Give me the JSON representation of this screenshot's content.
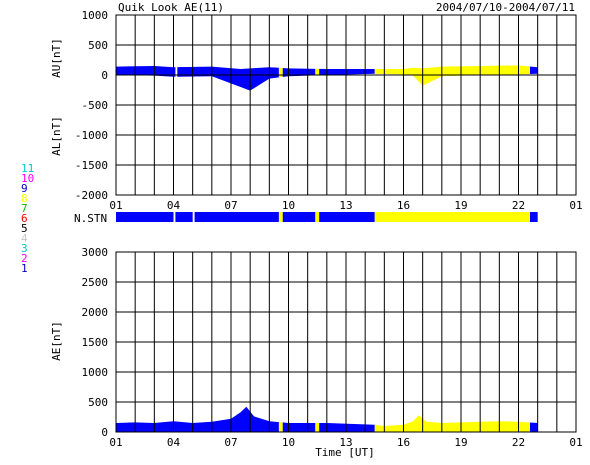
{
  "header": {
    "title": "Quik Look AE(11)",
    "date_range": "2004/07/10-2004/07/11"
  },
  "colors": {
    "blue": "#0000ff",
    "yellow": "#ffff00",
    "grid": "#000000"
  },
  "station_legend": [
    {
      "label": "11",
      "color": "#00c8c8"
    },
    {
      "label": "10",
      "color": "#ff00ff"
    },
    {
      "label": "9",
      "color": "#0000cc"
    },
    {
      "label": "8",
      "color": "#ffff00"
    },
    {
      "label": "7",
      "color": "#00c800"
    },
    {
      "label": "6",
      "color": "#ff0000"
    },
    {
      "label": "5",
      "color": "#000000"
    },
    {
      "label": "4",
      "color": "#c8c8c8"
    },
    {
      "label": "3",
      "color": "#00c8c8"
    },
    {
      "label": "2",
      "color": "#ff00ff"
    },
    {
      "label": "1",
      "color": "#0000cc"
    }
  ],
  "nstn_label": "N.STN",
  "chart_data": [
    {
      "type": "area",
      "ylabel_top": "AU[nT]",
      "ylabel_bottom": "AL[nT]",
      "ylim": [
        -2000,
        1000
      ],
      "yticks": [
        "1000",
        "500",
        "0",
        "-500",
        "-1000",
        "-1500",
        "-2000"
      ],
      "xlim": [
        1,
        25
      ],
      "xticks": [
        "01",
        "04",
        "07",
        "10",
        "13",
        "16",
        "19",
        "22",
        "01"
      ],
      "grid": true,
      "au_band": {
        "x": [
          1,
          3,
          4,
          6,
          7.5,
          8,
          9,
          10,
          12,
          14.5,
          16,
          16.5,
          17,
          18,
          20,
          22,
          23
        ],
        "top": [
          140,
          150,
          130,
          140,
          100,
          110,
          130,
          110,
          100,
          100,
          100,
          120,
          110,
          140,
          150,
          160,
          130
        ],
        "bottom": [
          0,
          -10,
          -30,
          -20,
          -200,
          -260,
          -60,
          -20,
          0,
          20,
          10,
          -10,
          -180,
          -20,
          0,
          10,
          20
        ]
      },
      "segments": [
        {
          "start": 1.0,
          "end": 4.1,
          "color": "blue"
        },
        {
          "start": 4.2,
          "end": 9.5,
          "color": "blue"
        },
        {
          "start": 9.5,
          "end": 9.7,
          "color": "yellow"
        },
        {
          "start": 9.7,
          "end": 11.4,
          "color": "blue"
        },
        {
          "start": 11.4,
          "end": 11.6,
          "color": "yellow"
        },
        {
          "start": 11.6,
          "end": 14.5,
          "color": "blue"
        },
        {
          "start": 14.5,
          "end": 22.6,
          "color": "yellow"
        },
        {
          "start": 22.6,
          "end": 23.0,
          "color": "blue"
        }
      ]
    },
    {
      "type": "area",
      "ylabel": "AE[nT]",
      "xlabel": "Time [UT]",
      "ylim": [
        0,
        3000
      ],
      "yticks": [
        "3000",
        "2500",
        "2000",
        "1500",
        "1000",
        "500",
        "0"
      ],
      "xlim": [
        1,
        25
      ],
      "xticks": [
        "01",
        "04",
        "07",
        "10",
        "13",
        "16",
        "19",
        "22",
        "01"
      ],
      "grid": true,
      "x": [
        1,
        2,
        3,
        4,
        5,
        6,
        7,
        7.5,
        7.8,
        8.2,
        9,
        10,
        12,
        14.5,
        15,
        16,
        16.5,
        16.8,
        17.2,
        18,
        19,
        20,
        21,
        22,
        23
      ],
      "y": [
        150,
        160,
        150,
        180,
        150,
        170,
        220,
        330,
        420,
        260,
        180,
        150,
        150,
        120,
        100,
        120,
        180,
        280,
        170,
        150,
        160,
        170,
        180,
        170,
        150
      ],
      "segments": [
        {
          "start": 1.0,
          "end": 9.5,
          "color": "blue"
        },
        {
          "start": 9.5,
          "end": 9.7,
          "color": "yellow"
        },
        {
          "start": 9.7,
          "end": 11.4,
          "color": "blue"
        },
        {
          "start": 11.4,
          "end": 11.6,
          "color": "yellow"
        },
        {
          "start": 11.6,
          "end": 14.5,
          "color": "blue"
        },
        {
          "start": 14.5,
          "end": 22.6,
          "color": "yellow"
        },
        {
          "start": 22.6,
          "end": 23.0,
          "color": "blue"
        }
      ]
    }
  ],
  "nstn_segments": [
    {
      "start": 1.0,
      "end": 4.0,
      "color": "blue"
    },
    {
      "start": 4.1,
      "end": 5.0,
      "color": "blue"
    },
    {
      "start": 5.1,
      "end": 9.5,
      "color": "blue"
    },
    {
      "start": 9.5,
      "end": 9.7,
      "color": "yellow"
    },
    {
      "start": 9.7,
      "end": 11.4,
      "color": "blue"
    },
    {
      "start": 11.4,
      "end": 11.6,
      "color": "yellow"
    },
    {
      "start": 11.6,
      "end": 14.5,
      "color": "blue"
    },
    {
      "start": 14.5,
      "end": 22.6,
      "color": "yellow"
    },
    {
      "start": 22.6,
      "end": 23.0,
      "color": "blue"
    }
  ]
}
